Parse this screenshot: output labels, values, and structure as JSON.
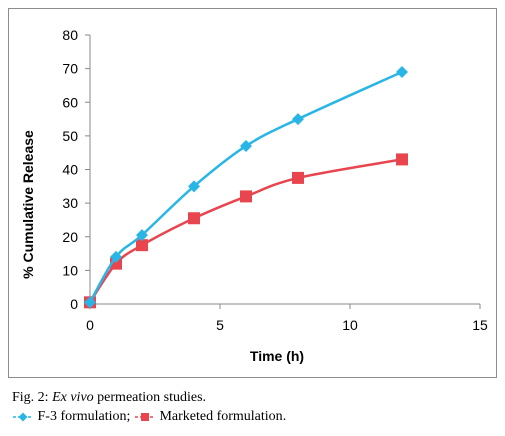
{
  "chart_data": {
    "type": "line",
    "title": "",
    "xlabel": "Time (h)",
    "ylabel": "% Cumulative Release",
    "xlim": [
      0,
      15
    ],
    "ylim": [
      0,
      80
    ],
    "xticks": [
      0,
      5,
      10,
      15
    ],
    "yticks": [
      0,
      10,
      20,
      30,
      40,
      50,
      60,
      70,
      80
    ],
    "grid": false,
    "series": [
      {
        "name": "F-3 formulation",
        "color": "#29b6e6",
        "marker": "diamond",
        "x": [
          0,
          1,
          2,
          4,
          6,
          8,
          12
        ],
        "y": [
          0.5,
          14,
          20.5,
          35,
          47,
          55,
          69
        ]
      },
      {
        "name": "Marketed formulation",
        "color": "#e8454f",
        "marker": "square",
        "x": [
          0,
          1,
          2,
          4,
          6,
          8,
          12
        ],
        "y": [
          0.5,
          12,
          17.5,
          25.5,
          32,
          37.5,
          43
        ]
      }
    ]
  },
  "caption": {
    "prefix": "Fig. 2: ",
    "italic": "Ex vivo",
    "suffix": " permeation studies.",
    "legend_sep": "; ",
    "legend_end": "."
  }
}
